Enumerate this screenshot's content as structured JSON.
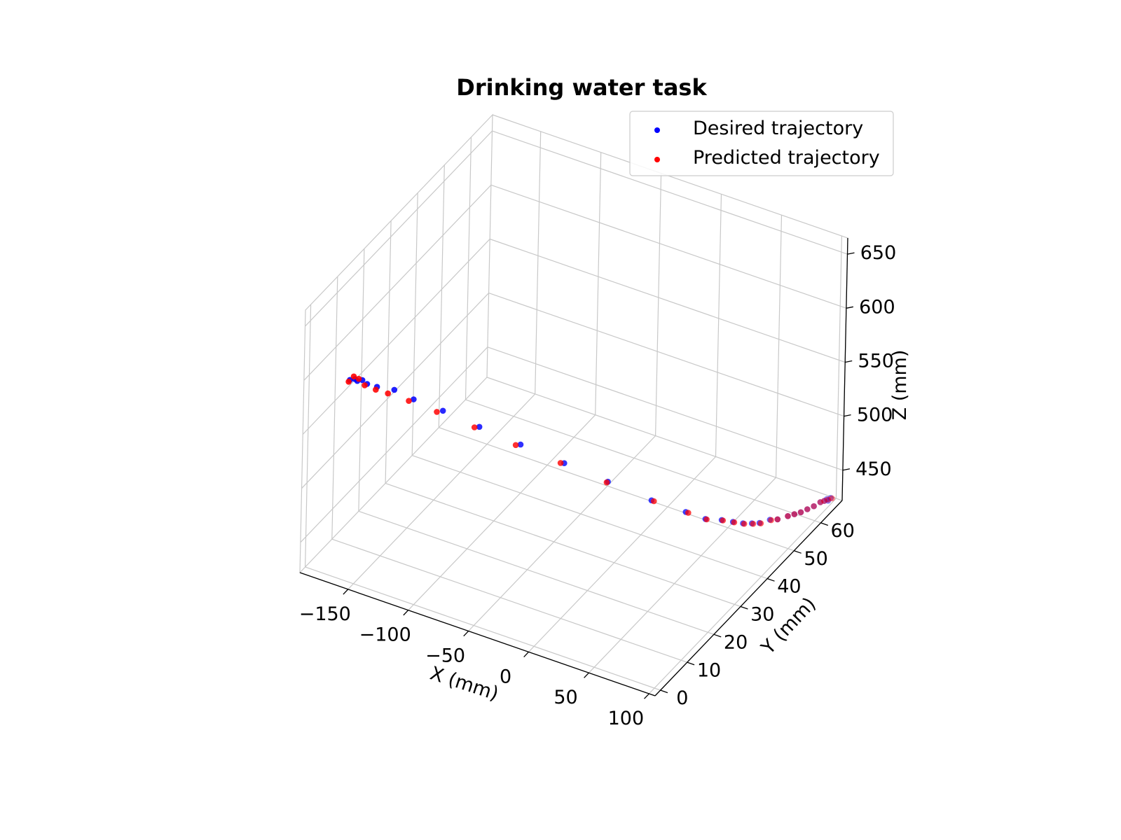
{
  "chart_data": {
    "type": "scatter",
    "projection": "3d",
    "title": "Drinking water task",
    "xlabel": "X (mm)",
    "ylabel": "Y (mm)",
    "zlabel": "Z (mm)",
    "xlim": [
      -190,
      105
    ],
    "ylim": [
      -2,
      68
    ],
    "zlim": [
      422,
      665
    ],
    "xticks": [
      -150,
      -100,
      -50,
      0,
      50,
      100
    ],
    "xtick_labels": [
      "−150",
      "−100",
      "−50",
      "0",
      "50",
      "100"
    ],
    "yticks": [
      0,
      10,
      20,
      30,
      40,
      50,
      60
    ],
    "ytick_labels": [
      "0",
      "10",
      "20",
      "30",
      "40",
      "50",
      "60"
    ],
    "zticks": [
      450,
      500,
      550,
      600,
      650
    ],
    "ztick_labels": [
      "450",
      "500",
      "550",
      "600",
      "650"
    ],
    "grid": true,
    "legend_position": "top-right",
    "series": [
      {
        "name": "Desired trajectory",
        "color": "#0000ff",
        "points": [
          [
            -178,
            10,
            574
          ],
          [
            -176,
            11,
            573
          ],
          [
            -174,
            11,
            572
          ],
          [
            -172,
            12,
            571
          ],
          [
            -168,
            12,
            569
          ],
          [
            -162,
            13,
            566
          ],
          [
            -152,
            15,
            562
          ],
          [
            -138,
            16,
            556
          ],
          [
            -118,
            18,
            548
          ],
          [
            -92,
            20,
            538
          ],
          [
            -62,
            22,
            528
          ],
          [
            -30,
            24,
            518
          ],
          [
            2,
            26,
            508
          ],
          [
            34,
            28,
            498
          ],
          [
            56,
            31,
            488
          ],
          [
            68,
            33,
            481
          ],
          [
            75,
            36,
            475
          ],
          [
            80,
            38,
            470
          ],
          [
            84,
            40,
            465
          ],
          [
            87,
            42,
            461
          ],
          [
            89,
            44,
            457
          ],
          [
            91,
            47,
            453
          ],
          [
            93,
            49,
            449
          ],
          [
            95,
            52,
            445
          ],
          [
            96,
            54,
            442
          ],
          [
            97,
            56,
            439
          ],
          [
            98,
            58,
            437
          ],
          [
            99,
            60,
            435
          ],
          [
            100,
            62,
            434
          ],
          [
            101,
            63,
            433
          ],
          [
            101,
            64,
            432
          ],
          [
            102,
            64,
            431
          ],
          [
            102,
            65,
            431
          ]
        ]
      },
      {
        "name": "Predicted trajectory",
        "color": "#ff0000",
        "points": [
          [
            -179,
            10,
            572
          ],
          [
            -177,
            11,
            575
          ],
          [
            -175,
            12,
            571
          ],
          [
            -170,
            12,
            567
          ],
          [
            -163,
            13,
            563
          ],
          [
            -155,
            14,
            560
          ],
          [
            -142,
            16,
            553
          ],
          [
            -123,
            18,
            545
          ],
          [
            -96,
            20,
            536
          ],
          [
            -66,
            22,
            526
          ],
          [
            -33,
            24,
            517
          ],
          [
            1,
            26,
            507
          ],
          [
            36,
            28,
            498
          ],
          [
            58,
            31,
            488
          ],
          [
            69,
            33,
            481
          ],
          [
            76,
            36,
            475
          ],
          [
            81,
            38,
            470
          ],
          [
            85,
            40,
            465
          ],
          [
            88,
            42,
            461
          ],
          [
            90,
            44,
            457
          ],
          [
            92,
            47,
            453
          ],
          [
            93,
            49,
            449
          ],
          [
            95,
            52,
            445
          ],
          [
            96,
            54,
            442
          ],
          [
            97,
            56,
            439
          ],
          [
            98,
            58,
            437
          ],
          [
            99,
            60,
            435
          ],
          [
            100,
            62,
            434
          ],
          [
            101,
            63,
            433
          ],
          [
            102,
            64,
            432
          ],
          [
            103,
            65,
            431
          ]
        ]
      }
    ]
  }
}
